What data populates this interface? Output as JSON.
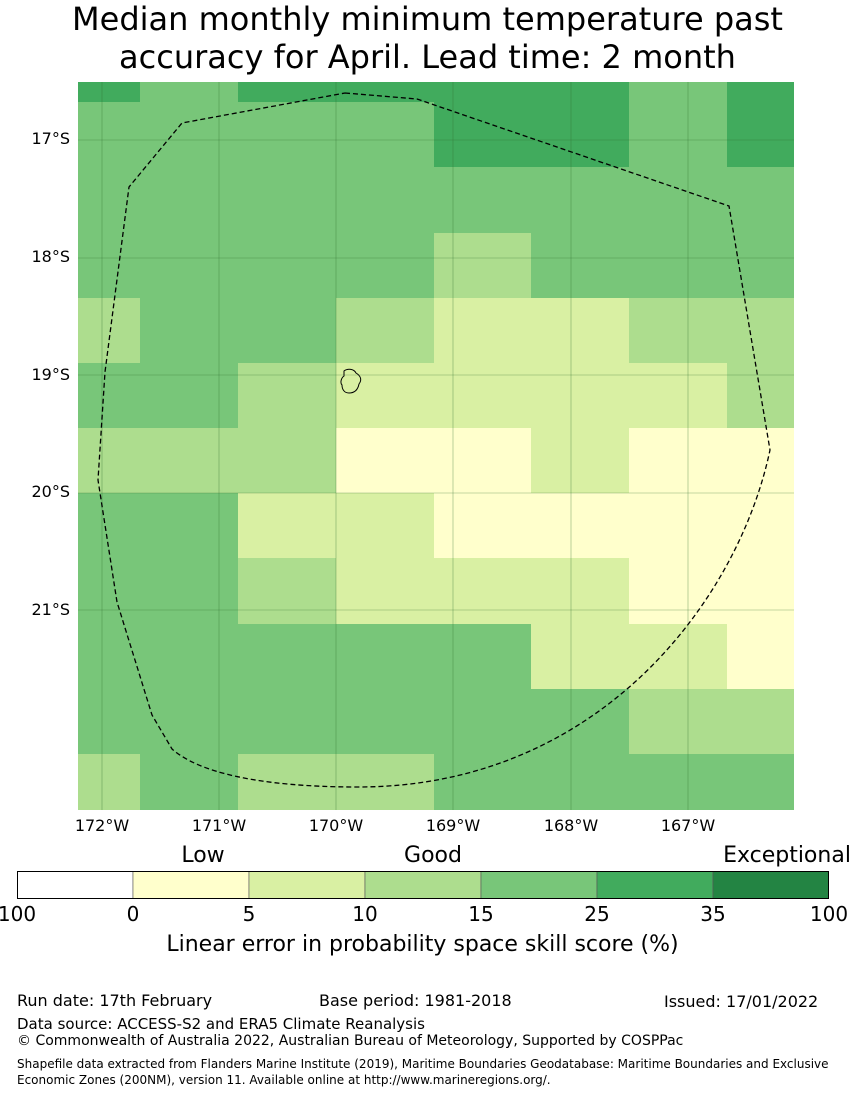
{
  "title_line1": "Median monthly minimum temperature past",
  "title_line2": "accuracy for April. Lead time: 2 month",
  "map": {
    "lat_labels": [
      "17°S",
      "18°S",
      "19°S",
      "20°S",
      "21°S"
    ],
    "lon_labels": [
      "172°W",
      "171°W",
      "170°W",
      "169°W",
      "168°W",
      "167°W"
    ],
    "grid_cells_category": [
      [
        5,
        4,
        5,
        5,
        5,
        5,
        4,
        5
      ],
      [
        4,
        4,
        4,
        4,
        5,
        5,
        4,
        5
      ],
      [
        4,
        4,
        4,
        4,
        4,
        4,
        4,
        4
      ],
      [
        4,
        4,
        4,
        4,
        3,
        4,
        4,
        4
      ],
      [
        3,
        4,
        4,
        3,
        2,
        2,
        3,
        3
      ],
      [
        4,
        4,
        3,
        2,
        2,
        2,
        2,
        3
      ],
      [
        3,
        3,
        3,
        1,
        1,
        2,
        1,
        1
      ],
      [
        4,
        4,
        2,
        2,
        1,
        1,
        1,
        1
      ],
      [
        4,
        4,
        3,
        2,
        2,
        2,
        1,
        1
      ],
      [
        4,
        4,
        4,
        4,
        4,
        2,
        2,
        1
      ],
      [
        4,
        4,
        4,
        4,
        4,
        4,
        3,
        3
      ],
      [
        3,
        4,
        3,
        3,
        4,
        4,
        4,
        4
      ]
    ]
  },
  "legend": {
    "categories": [
      "Low",
      "Good",
      "Exceptional"
    ],
    "ticks": [
      "100",
      "0",
      "5",
      "10",
      "15",
      "25",
      "35",
      "100"
    ],
    "colors": [
      "#ffffff",
      "#ffffcc",
      "#d9f0a3",
      "#addd8e",
      "#78c679",
      "#41ab5d",
      "#238443"
    ],
    "title": "Linear error in probability space skill score (%)"
  },
  "footer": {
    "run_date": "Run date: 17th February",
    "base_period": "Base period: 1981-2018",
    "issued": "Issued: 17/01/2022",
    "data_source": "Data source: ACCESS-S2 and ERA5 Climate Reanalysis",
    "copyright": "© Commonwealth of Australia 2022, Australian Bureau of Meteorology, Supported by COSPPac",
    "shapefile": "Shapefile data extracted from Flanders Marine Institute (2019), Maritime Boundaries Geodatabase: Maritime Boundaries and Exclusive Economic Zones (200NM), version 11. Available online at http://www.marineregions.org/."
  }
}
